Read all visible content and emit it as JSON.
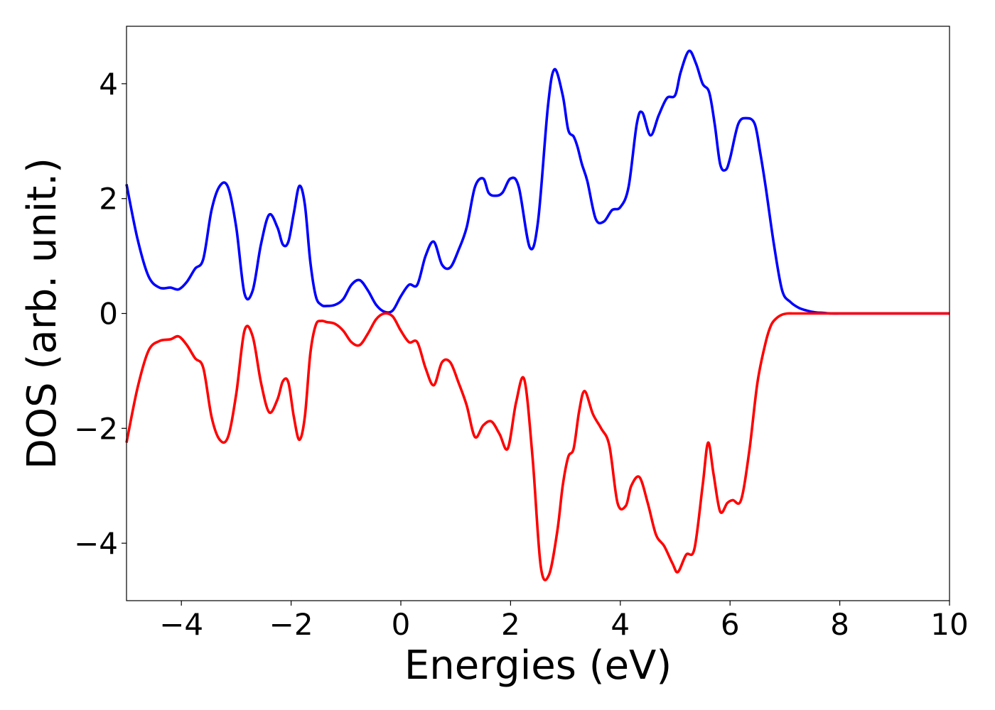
{
  "chart_data": {
    "type": "line",
    "xlabel": "Energies (eV)",
    "ylabel": "DOS (arb. unit.)",
    "xlim": [
      -5,
      10
    ],
    "ylim": [
      -5,
      5
    ],
    "x_ticks": [
      -4,
      -2,
      0,
      2,
      4,
      6,
      8,
      10
    ],
    "x_tick_labels": [
      "−4",
      "−2",
      "0",
      "2",
      "4",
      "6",
      "8",
      "10"
    ],
    "y_ticks": [
      -4,
      -2,
      0,
      2,
      4
    ],
    "y_tick_labels": [
      "−4",
      "−2",
      "0",
      "2",
      "4"
    ],
    "grid": false,
    "legend": "none",
    "series": [
      {
        "color": "#0000ff",
        "x": [
          -5.0,
          -4.8,
          -4.6,
          -4.4,
          -4.2,
          -4.05,
          -3.9,
          -3.75,
          -3.6,
          -3.45,
          -3.3,
          -3.15,
          -3.0,
          -2.85,
          -2.7,
          -2.55,
          -2.4,
          -2.25,
          -2.15,
          -2.05,
          -1.95,
          -1.85,
          -1.75,
          -1.65,
          -1.55,
          -1.45,
          -1.35,
          -1.2,
          -1.05,
          -0.9,
          -0.75,
          -0.6,
          -0.45,
          -0.3,
          -0.15,
          0.0,
          0.15,
          0.3,
          0.45,
          0.6,
          0.75,
          0.9,
          1.05,
          1.2,
          1.35,
          1.5,
          1.6,
          1.72,
          1.85,
          2.0,
          2.15,
          2.35,
          2.5,
          2.68,
          2.8,
          2.95,
          3.05,
          3.15,
          3.22,
          3.3,
          3.4,
          3.55,
          3.7,
          3.85,
          4.0,
          4.15,
          4.3,
          4.4,
          4.55,
          4.7,
          4.85,
          5.0,
          5.1,
          5.25,
          5.38,
          5.5,
          5.62,
          5.72,
          5.82,
          5.92,
          6.0,
          6.15,
          6.3,
          6.45,
          6.55,
          6.65,
          6.8,
          6.95,
          7.1,
          7.25,
          7.4,
          7.55,
          7.7,
          7.85,
          8.0,
          8.15,
          8.3,
          8.5,
          9.0,
          10.0
        ],
        "y": [
          2.25,
          1.3,
          0.65,
          0.45,
          0.45,
          0.42,
          0.55,
          0.78,
          0.95,
          1.8,
          2.22,
          2.2,
          1.5,
          0.35,
          0.4,
          1.2,
          1.72,
          1.5,
          1.2,
          1.25,
          1.75,
          2.22,
          1.9,
          0.9,
          0.3,
          0.15,
          0.13,
          0.15,
          0.25,
          0.5,
          0.58,
          0.4,
          0.15,
          0.03,
          0.05,
          0.3,
          0.5,
          0.5,
          1.0,
          1.25,
          0.85,
          0.8,
          1.1,
          1.5,
          2.2,
          2.35,
          2.1,
          2.05,
          2.1,
          2.35,
          2.2,
          1.15,
          1.6,
          3.6,
          4.25,
          3.8,
          3.2,
          3.08,
          2.9,
          2.6,
          2.3,
          1.65,
          1.6,
          1.8,
          1.85,
          2.2,
          3.3,
          3.5,
          3.1,
          3.45,
          3.75,
          3.8,
          4.2,
          4.57,
          4.35,
          4.0,
          3.85,
          3.3,
          2.6,
          2.5,
          2.7,
          3.3,
          3.4,
          3.3,
          2.8,
          2.2,
          1.2,
          0.4,
          0.2,
          0.1,
          0.05,
          0.02,
          0.01,
          0.0,
          0.0,
          0.0,
          0.0,
          0.0,
          0.0,
          0.0
        ]
      },
      {
        "color": "#ff0000",
        "x": [
          -5.0,
          -4.8,
          -4.6,
          -4.4,
          -4.2,
          -4.05,
          -3.9,
          -3.75,
          -3.6,
          -3.45,
          -3.3,
          -3.15,
          -3.0,
          -2.85,
          -2.7,
          -2.55,
          -2.4,
          -2.25,
          -2.15,
          -2.05,
          -1.95,
          -1.85,
          -1.75,
          -1.65,
          -1.55,
          -1.45,
          -1.35,
          -1.2,
          -1.05,
          -0.9,
          -0.75,
          -0.6,
          -0.45,
          -0.3,
          -0.15,
          0.0,
          0.15,
          0.3,
          0.45,
          0.6,
          0.75,
          0.9,
          1.05,
          1.2,
          1.35,
          1.5,
          1.65,
          1.8,
          1.95,
          2.1,
          2.25,
          2.4,
          2.55,
          2.7,
          2.85,
          2.95,
          3.05,
          3.15,
          3.25,
          3.35,
          3.5,
          3.65,
          3.8,
          3.95,
          4.1,
          4.2,
          4.35,
          4.5,
          4.65,
          4.8,
          4.95,
          5.05,
          5.2,
          5.35,
          5.5,
          5.6,
          5.7,
          5.82,
          5.95,
          6.05,
          6.2,
          6.35,
          6.5,
          6.65,
          6.75,
          6.85,
          6.95,
          7.05,
          7.15,
          7.3,
          7.45,
          7.6,
          7.75,
          7.9,
          8.05,
          8.2,
          8.4,
          8.6,
          9.0,
          10.0
        ],
        "y": [
          -2.25,
          -1.3,
          -0.65,
          -0.48,
          -0.45,
          -0.4,
          -0.55,
          -0.78,
          -0.95,
          -1.8,
          -2.2,
          -2.15,
          -1.4,
          -0.3,
          -0.4,
          -1.2,
          -1.72,
          -1.5,
          -1.18,
          -1.2,
          -1.8,
          -2.2,
          -1.8,
          -0.7,
          -0.2,
          -0.13,
          -0.15,
          -0.18,
          -0.3,
          -0.5,
          -0.55,
          -0.35,
          -0.1,
          0.0,
          -0.05,
          -0.3,
          -0.5,
          -0.5,
          -0.95,
          -1.25,
          -0.85,
          -0.85,
          -1.2,
          -1.6,
          -2.15,
          -1.95,
          -1.88,
          -2.1,
          -2.35,
          -1.55,
          -1.15,
          -2.5,
          -4.4,
          -4.55,
          -3.8,
          -3.0,
          -2.5,
          -2.35,
          -1.7,
          -1.35,
          -1.75,
          -2.0,
          -2.3,
          -3.3,
          -3.35,
          -3.0,
          -2.85,
          -3.3,
          -3.85,
          -4.05,
          -4.35,
          -4.5,
          -4.2,
          -4.1,
          -3.0,
          -2.25,
          -2.8,
          -3.45,
          -3.3,
          -3.25,
          -3.25,
          -2.4,
          -1.2,
          -0.5,
          -0.2,
          -0.08,
          -0.02,
          0.0,
          0.0,
          0.0,
          0.0,
          0.0,
          0.0,
          0.0,
          0.0,
          0.0,
          0.0,
          0.0,
          0.0,
          0.0
        ]
      }
    ]
  }
}
